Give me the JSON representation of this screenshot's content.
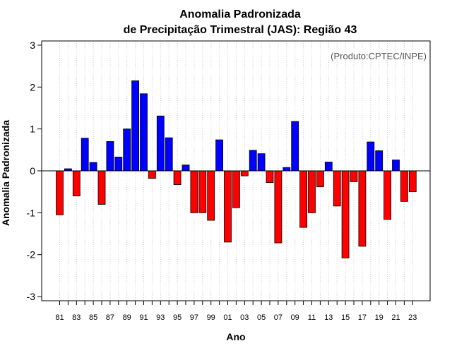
{
  "chart_data": {
    "type": "bar",
    "title_line1": "Anomalia Padronizada",
    "title_line2": "de Precipitação Trimestral (JAS): Região 43",
    "credit": "(Produto:CPTEC/INPE)",
    "xlabel": "Ano",
    "ylabel": "Anomalia Padronizada",
    "ylim": [
      -3.1,
      3.1
    ],
    "yticks": [
      -3,
      -2,
      -1,
      0,
      1,
      2,
      3
    ],
    "years": [
      1981,
      1982,
      1983,
      1984,
      1985,
      1986,
      1987,
      1988,
      1989,
      1990,
      1991,
      1992,
      1993,
      1994,
      1995,
      1996,
      1997,
      1998,
      1999,
      2000,
      2001,
      2002,
      2003,
      2004,
      2005,
      2006,
      2007,
      2008,
      2009,
      2010,
      2011,
      2012,
      2013,
      2014,
      2015,
      2016,
      2017,
      2018,
      2019,
      2020,
      2021,
      2022,
      2023
    ],
    "xtick_labels": [
      "81",
      "83",
      "85",
      "87",
      "89",
      "91",
      "93",
      "95",
      "97",
      "99",
      "01",
      "03",
      "05",
      "07",
      "09",
      "11",
      "13",
      "15",
      "17",
      "19",
      "21",
      "23"
    ],
    "values": [
      -1.05,
      0.05,
      -0.6,
      0.78,
      0.2,
      -0.8,
      0.7,
      0.33,
      1.0,
      2.15,
      1.84,
      -0.18,
      1.31,
      0.79,
      -0.33,
      0.14,
      -1.0,
      -1.0,
      -1.18,
      0.74,
      -1.7,
      -0.88,
      -0.12,
      0.49,
      0.41,
      -0.28,
      -1.72,
      0.08,
      1.18,
      -1.35,
      -1.0,
      -0.38,
      0.21,
      -0.84,
      -2.08,
      -0.26,
      -1.8,
      0.69,
      0.48,
      -1.16,
      0.26,
      -0.73,
      -0.5
    ],
    "positive_color": "#0000ff",
    "negative_color": "#ff0000",
    "grid": "vertical dotted"
  }
}
